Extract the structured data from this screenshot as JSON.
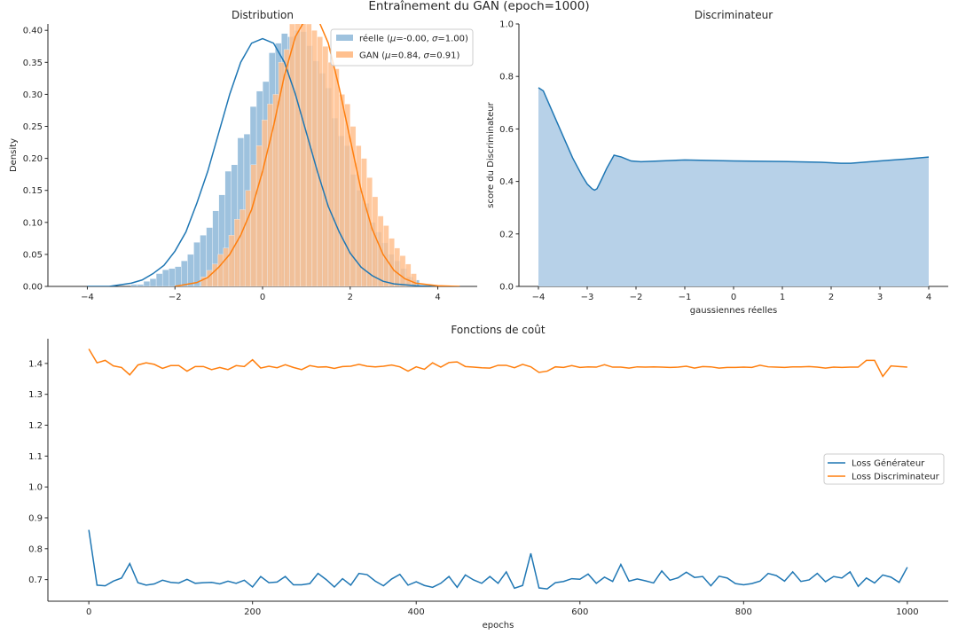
{
  "figure": {
    "suptitle": "Entraînement du GAN (epoch=1000)"
  },
  "colors": {
    "blue": "#1f77b4",
    "orange": "#ff7f0e",
    "blue_fill": "#9ec2de",
    "orange_fill": "#ffc08f",
    "overlap_fill": "#c7aa8c",
    "area_fill": "#b7d1e8"
  },
  "chart_data": [
    {
      "id": "distribution",
      "type": "bar",
      "title": "Distribution",
      "xlabel": "",
      "ylabel": "Density",
      "xlim": [
        -4.9,
        4.9
      ],
      "ylim": [
        0,
        0.41
      ],
      "xticks": [
        -4,
        -2,
        0,
        2,
        4
      ],
      "yticks": [
        0.0,
        0.05,
        0.1,
        0.15,
        0.2,
        0.25,
        0.3,
        0.35,
        0.4
      ],
      "xtick_labels": [
        "−4",
        "−2",
        "0",
        "2",
        "4"
      ],
      "ytick_labels": [
        "0.00",
        "0.05",
        "0.10",
        "0.15",
        "0.20",
        "0.25",
        "0.30",
        "0.35",
        "0.40"
      ],
      "legend_position": "top-right",
      "series": [
        {
          "name": "réelle (μ=-0.00, σ=1.00)",
          "legend_prefix": "réelle (",
          "legend_mid": "=-0.00, ",
          "legend_end": "=1.00)",
          "mu": -0.0,
          "sigma": 1.0,
          "hist_range": [
            -3.0,
            3.0
          ],
          "bin_width": 0.143,
          "heights": [
            0.003,
            0.003,
            0.008,
            0.012,
            0.02,
            0.026,
            0.028,
            0.031,
            0.04,
            0.05,
            0.069,
            0.08,
            0.092,
            0.118,
            0.143,
            0.18,
            0.19,
            0.232,
            0.238,
            0.281,
            0.305,
            0.32,
            0.365,
            0.38,
            0.395,
            0.39,
            0.4,
            0.398,
            0.376,
            0.352,
            0.333,
            0.31,
            0.263,
            0.235,
            0.22,
            0.175,
            0.15,
            0.13,
            0.1,
            0.085,
            0.068,
            0.05,
            0.04,
            0.028,
            0.015,
            0.01
          ],
          "kde_x": [
            -4.0,
            -3.5,
            -3.0,
            -2.75,
            -2.5,
            -2.25,
            -2.0,
            -1.75,
            -1.5,
            -1.25,
            -1.0,
            -0.75,
            -0.5,
            -0.25,
            0.0,
            0.25,
            0.5,
            0.75,
            1.0,
            1.25,
            1.5,
            1.75,
            2.0,
            2.25,
            2.5,
            2.75,
            3.0,
            3.5,
            4.0
          ],
          "kde_y": [
            0.0,
            0.0,
            0.005,
            0.01,
            0.02,
            0.033,
            0.055,
            0.085,
            0.13,
            0.18,
            0.24,
            0.3,
            0.35,
            0.38,
            0.387,
            0.38,
            0.35,
            0.3,
            0.24,
            0.18,
            0.125,
            0.085,
            0.052,
            0.03,
            0.017,
            0.008,
            0.004,
            0.001,
            0.0
          ]
        },
        {
          "name": "GAN (μ=0.84, σ=0.91)",
          "legend_prefix": "GAN (",
          "legend_mid": "=0.84, ",
          "legend_end": "=0.91)",
          "mu": 0.84,
          "sigma": 0.91,
          "hist_range": [
            -1.4,
            3.5
          ],
          "bin_width": 0.126,
          "heights": [
            0.015,
            0.025,
            0.035,
            0.05,
            0.06,
            0.08,
            0.105,
            0.12,
            0.15,
            0.19,
            0.22,
            0.26,
            0.285,
            0.3,
            0.35,
            0.37,
            0.41,
            0.42,
            0.44,
            0.41,
            0.4,
            0.39,
            0.375,
            0.35,
            0.34,
            0.3,
            0.285,
            0.25,
            0.22,
            0.2,
            0.17,
            0.14,
            0.11,
            0.095,
            0.075,
            0.06,
            0.048,
            0.035,
            0.02
          ],
          "kde_x": [
            -2.0,
            -1.5,
            -1.25,
            -1.0,
            -0.75,
            -0.5,
            -0.25,
            0.0,
            0.25,
            0.5,
            0.75,
            1.0,
            1.25,
            1.5,
            1.75,
            2.0,
            2.25,
            2.5,
            2.75,
            3.0,
            3.25,
            3.5,
            4.0,
            4.5
          ],
          "kde_y": [
            0.0,
            0.006,
            0.014,
            0.03,
            0.05,
            0.08,
            0.12,
            0.18,
            0.25,
            0.33,
            0.39,
            0.42,
            0.42,
            0.38,
            0.31,
            0.23,
            0.15,
            0.09,
            0.05,
            0.025,
            0.012,
            0.005,
            0.001,
            0.0
          ]
        }
      ]
    },
    {
      "id": "discriminateur",
      "type": "area",
      "title": "Discriminateur",
      "xlabel": "gaussiennes réelles",
      "ylabel": "score du Discriminateur",
      "xlim": [
        -4.4,
        4.4
      ],
      "ylim": [
        0.0,
        1.0
      ],
      "xticks": [
        -4,
        -3,
        -2,
        -1,
        0,
        1,
        2,
        3,
        4
      ],
      "yticks": [
        0.0,
        0.2,
        0.4,
        0.6,
        0.8,
        1.0
      ],
      "xtick_labels": [
        "−4",
        "−3",
        "−2",
        "−1",
        "0",
        "1",
        "2",
        "3",
        "4"
      ],
      "ytick_labels": [
        "0.0",
        "0.2",
        "0.4",
        "0.6",
        "0.8",
        "1.0"
      ],
      "x": [
        -4.0,
        -3.9,
        -3.7,
        -3.5,
        -3.3,
        -3.1,
        -3.0,
        -2.9,
        -2.85,
        -2.8,
        -2.7,
        -2.6,
        -2.45,
        -2.3,
        -2.1,
        -1.9,
        -1.5,
        -1.0,
        0.0,
        1.0,
        1.8,
        2.2,
        2.4,
        3.0,
        3.5,
        4.0
      ],
      "y": [
        0.757,
        0.745,
        0.66,
        0.575,
        0.49,
        0.42,
        0.39,
        0.372,
        0.367,
        0.372,
        0.41,
        0.45,
        0.5,
        0.493,
        0.478,
        0.475,
        0.478,
        0.482,
        0.478,
        0.476,
        0.473,
        0.469,
        0.469,
        0.478,
        0.485,
        0.493
      ]
    },
    {
      "id": "couts",
      "type": "line",
      "title": "Fonctions de coût",
      "xlabel": "epochs",
      "ylabel": "",
      "xlim": [
        -50,
        1050
      ],
      "ylim": [
        0.63,
        1.48
      ],
      "xticks": [
        0,
        200,
        400,
        600,
        800,
        1000
      ],
      "yticks": [
        0.7,
        0.8,
        0.9,
        1.0,
        1.1,
        1.2,
        1.3,
        1.4
      ],
      "xtick_labels": [
        "0",
        "200",
        "400",
        "600",
        "800",
        "1000"
      ],
      "ytick_labels": [
        "0.7",
        "0.8",
        "0.9",
        "1.0",
        "1.1",
        "1.2",
        "1.3",
        "1.4"
      ],
      "legend_position": "center-right",
      "x_step": 10,
      "series": [
        {
          "name": "Loss Générateur",
          "values": [
            0.861,
            0.682,
            0.68,
            0.695,
            0.705,
            0.752,
            0.69,
            0.682,
            0.686,
            0.698,
            0.691,
            0.689,
            0.701,
            0.688,
            0.69,
            0.691,
            0.686,
            0.695,
            0.688,
            0.698,
            0.676,
            0.71,
            0.69,
            0.692,
            0.71,
            0.683,
            0.683,
            0.687,
            0.72,
            0.7,
            0.676,
            0.703,
            0.682,
            0.72,
            0.716,
            0.695,
            0.68,
            0.702,
            0.717,
            0.682,
            0.693,
            0.681,
            0.675,
            0.688,
            0.71,
            0.675,
            0.715,
            0.699,
            0.688,
            0.71,
            0.688,
            0.725,
            0.672,
            0.681,
            0.785,
            0.673,
            0.67,
            0.69,
            0.694,
            0.703,
            0.701,
            0.718,
            0.688,
            0.708,
            0.694,
            0.749,
            0.695,
            0.702,
            0.696,
            0.689,
            0.728,
            0.698,
            0.706,
            0.724,
            0.707,
            0.71,
            0.68,
            0.711,
            0.705,
            0.687,
            0.683,
            0.687,
            0.695,
            0.72,
            0.713,
            0.695,
            0.725,
            0.694,
            0.699,
            0.72,
            0.693,
            0.71,
            0.705,
            0.725,
            0.678,
            0.705,
            0.689,
            0.715,
            0.708,
            0.691,
            0.74
          ]
        },
        {
          "name": "Loss Discriminateur",
          "values": [
            1.447,
            1.402,
            1.41,
            1.392,
            1.387,
            1.363,
            1.395,
            1.402,
            1.397,
            1.384,
            1.393,
            1.393,
            1.375,
            1.39,
            1.39,
            1.38,
            1.387,
            1.38,
            1.393,
            1.39,
            1.412,
            1.385,
            1.391,
            1.386,
            1.396,
            1.387,
            1.38,
            1.393,
            1.388,
            1.389,
            1.384,
            1.39,
            1.391,
            1.397,
            1.391,
            1.389,
            1.391,
            1.395,
            1.389,
            1.375,
            1.389,
            1.381,
            1.402,
            1.388,
            1.403,
            1.405,
            1.39,
            1.388,
            1.386,
            1.385,
            1.394,
            1.394,
            1.386,
            1.397,
            1.389,
            1.371,
            1.375,
            1.389,
            1.387,
            1.393,
            1.387,
            1.389,
            1.388,
            1.396,
            1.388,
            1.388,
            1.385,
            1.389,
            1.388,
            1.389,
            1.388,
            1.387,
            1.388,
            1.391,
            1.385,
            1.39,
            1.389,
            1.385,
            1.387,
            1.387,
            1.388,
            1.387,
            1.394,
            1.389,
            1.388,
            1.387,
            1.389,
            1.389,
            1.39,
            1.388,
            1.385,
            1.388,
            1.387,
            1.388,
            1.388,
            1.41,
            1.41,
            1.358,
            1.392,
            1.39,
            1.388
          ]
        }
      ]
    }
  ]
}
